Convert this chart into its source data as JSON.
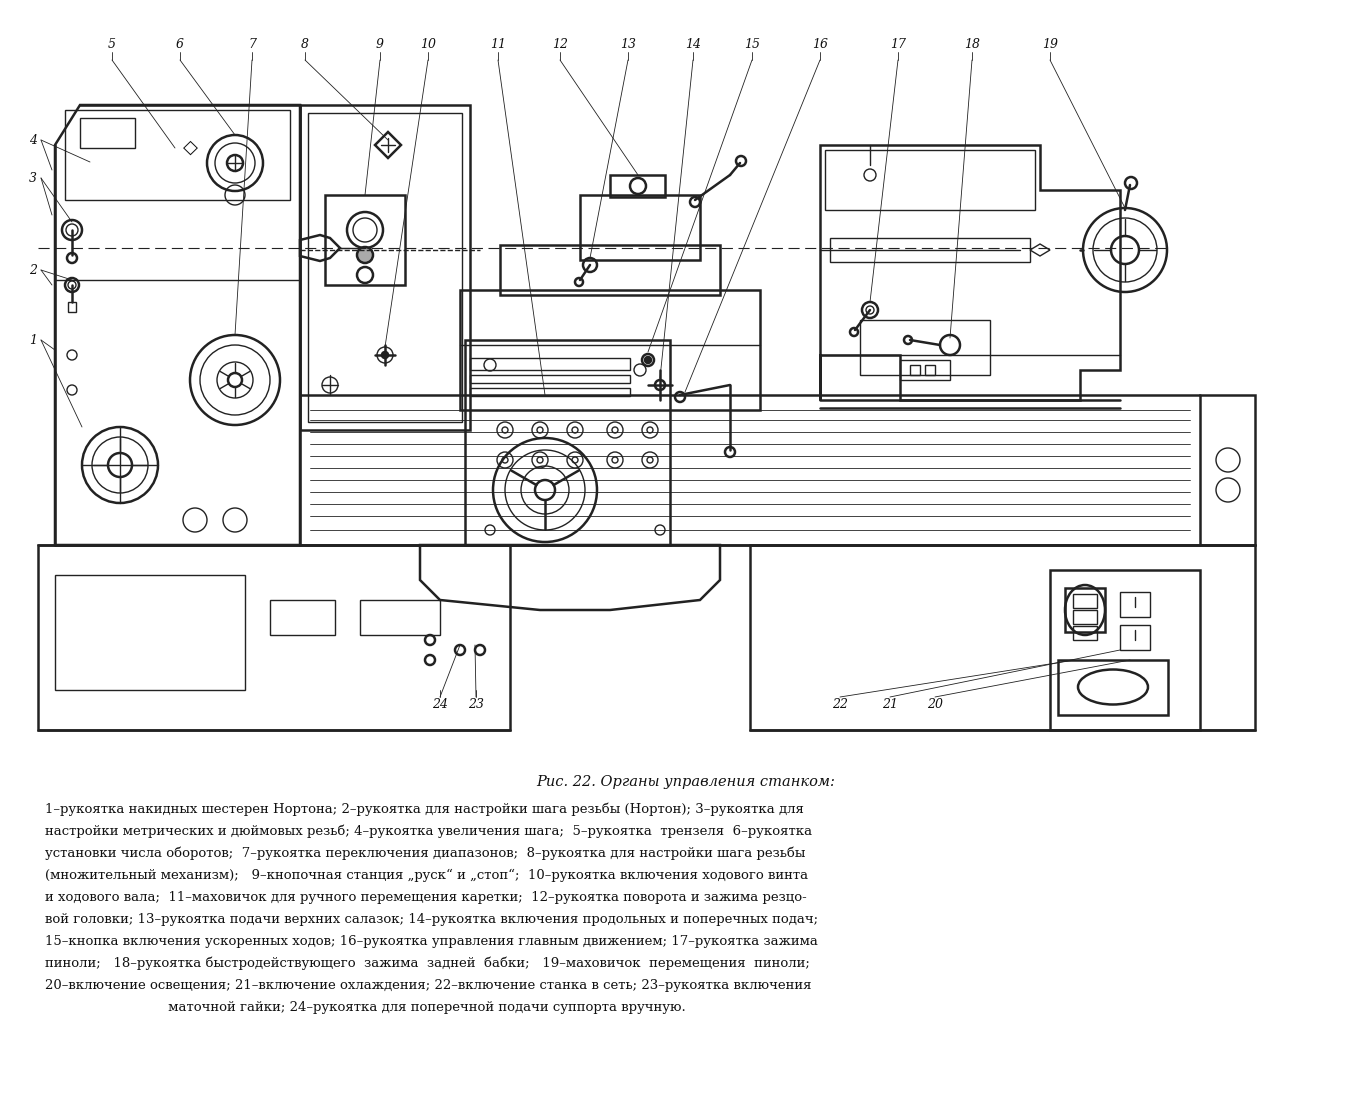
{
  "title": "Рис. 22. Органы управления станком:",
  "caption_lines": [
    "1–рукоятка накидных шестерен Нортона; 2–рукоятка для настройки шага резьбы (Нортон); 3–рукоятка для",
    "настройки метрических и дюймовых резьб; 4–рукоятка увеличения шага;  5–рукоятка  трензеля  6–рукоятка",
    "установки числа оборотов;  7–рукоятка переключения диапазонов;  8–рукоятка для настройки шага резьбы",
    "(множительный механизм);   9–кнопочная станция „рyск“ и „стоп“;  10–рукоятка включения ходового винта",
    "и ходового вала;  11–маховичок для ручного перемещения каретки;  12–рукоятка поворота и зажима резцо-",
    "вой головки; 13–рукоятка подачи верхних салазок; 14–рукоятка включения продольных и поперечных подач;",
    "15–кнопка включения ускоренных ходов; 16–рукоятка управления главным движением; 17–рукоятка зажима",
    "пиноли;   18–рукоятка быстродействующего  зажима  задней  бабки;   19–маховичок  перемещения  пиноли;",
    "20–включение освещения; 21–включение охлаждения; 22–включение станка в сеть; 23–рукоятка включения",
    "                             маточной гайки; 24–рукоятка для поперечной подачи суппорта вручную."
  ],
  "bg_color": "#ffffff",
  "line_color": "#222222",
  "text_color": "#111111"
}
